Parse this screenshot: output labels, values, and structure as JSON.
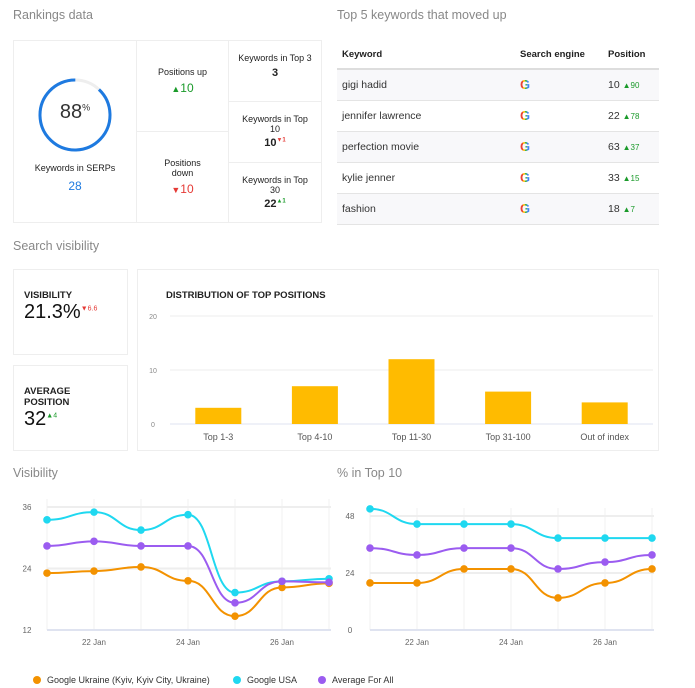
{
  "rankings": {
    "title": "Rankings data",
    "serp_percent": "88",
    "percent_sign": "%",
    "serp_fraction": 0.88,
    "serp_label": "Keywords in SERPs",
    "serp_value": "28",
    "positions_up_label": "Positions up",
    "positions_up_value": "10",
    "positions_down_label": "Positions down",
    "positions_down_value": "10",
    "top3_label": "Keywords in Top 3",
    "top3_value": "3",
    "top10_label": "Keywords in Top 10",
    "top10_value": "10",
    "top10_change": "1",
    "top30_label": "Keywords in Top 30",
    "top30_value": "22",
    "top30_change": "1"
  },
  "keywords": {
    "title": "Top 5 keywords that moved up",
    "headers": [
      "Keyword",
      "Search engine",
      "Position"
    ],
    "rows": [
      {
        "keyword": "gigi hadid",
        "engine": "G",
        "position": "10",
        "change": "90"
      },
      {
        "keyword": "jennifer lawrence",
        "engine": "G",
        "position": "22",
        "change": "78"
      },
      {
        "keyword": "perfection movie",
        "engine": "G",
        "position": "63",
        "change": "37"
      },
      {
        "keyword": "kylie jenner",
        "engine": "G",
        "position": "33",
        "change": "15"
      },
      {
        "keyword": "fashion",
        "engine": "G",
        "position": "18",
        "change": "7"
      }
    ]
  },
  "search_visibility": {
    "title": "Search visibility",
    "visibility_label": "VISIBILITY",
    "visibility_value": "21.3%",
    "visibility_change": "6.6",
    "avg_label": "AVERAGE POSITION",
    "avg_value": "32",
    "avg_change": "4"
  },
  "colors": {
    "orange": "#f39200",
    "cyan": "#1fd8f0",
    "purple": "#9b5cf0",
    "bar": "#ffbb00",
    "blue": "#1e7ae0",
    "up": "#1a9a2a",
    "down": "#e53935"
  },
  "chart_data": [
    {
      "type": "bar",
      "title": "DISTRIBUTION OF TOP POSITIONS",
      "categories": [
        "Top 1-3",
        "Top 4-10",
        "Top 11-30",
        "Top 31-100",
        "Out of index"
      ],
      "values": [
        3,
        7,
        12,
        6,
        4
      ],
      "ylim": [
        0,
        20
      ],
      "yticks": [
        "0",
        "10",
        "20"
      ],
      "grid": true
    },
    {
      "type": "line",
      "title": "Visibility",
      "x": [
        "21 Jan",
        "22 Jan",
        "23 Jan",
        "24 Jan",
        "25 Jan",
        "26 Jan",
        "27 Jan"
      ],
      "xticks": [
        "22 Jan",
        "24 Jan",
        "26 Jan"
      ],
      "ylim": [
        12,
        36
      ],
      "yticks": [
        "12",
        "24",
        "36"
      ],
      "series": [
        {
          "name": "Google Ukraine (Kyiv, Kyiv City, Ukraine)",
          "color": "#f39200",
          "values": [
            23.1,
            23.5,
            24.3,
            21.6,
            14.7,
            20.3,
            21.1
          ]
        },
        {
          "name": "Google USA",
          "color": "#1fd8f0",
          "values": [
            33.5,
            35,
            31.5,
            34.5,
            19.3,
            21.5,
            22
          ]
        },
        {
          "name": "Average For All",
          "color": "#9b5cf0",
          "values": [
            28.4,
            29.3,
            28.4,
            28.4,
            17.3,
            21.5,
            21.3
          ]
        }
      ]
    },
    {
      "type": "line",
      "title": "% in Top 10",
      "x": [
        "21 Jan",
        "22 Jan",
        "23 Jan",
        "24 Jan",
        "25 Jan",
        "26 Jan",
        "27 Jan"
      ],
      "xticks": [
        "22 Jan",
        "24 Jan",
        "26 Jan"
      ],
      "ylim": [
        0,
        48
      ],
      "yticks": [
        "0",
        "24",
        "48"
      ],
      "series": [
        {
          "name": "Google Ukraine (Kyiv, Kyiv City, Ukraine)",
          "color": "#f39200",
          "values": [
            19.8,
            19.8,
            25.7,
            25.7,
            13.5,
            19.8,
            25.7
          ]
        },
        {
          "name": "Google USA",
          "color": "#1fd8f0",
          "values": [
            51,
            44.6,
            44.6,
            44.6,
            38.7,
            38.7,
            38.7
          ]
        },
        {
          "name": "Average For All",
          "color": "#9b5cf0",
          "values": [
            34.5,
            31.6,
            34.5,
            34.5,
            25.7,
            28.6,
            31.6
          ]
        }
      ]
    }
  ],
  "legend": [
    "Google Ukraine (Kyiv, Kyiv City, Ukraine)",
    "Google USA",
    "Average For All"
  ]
}
